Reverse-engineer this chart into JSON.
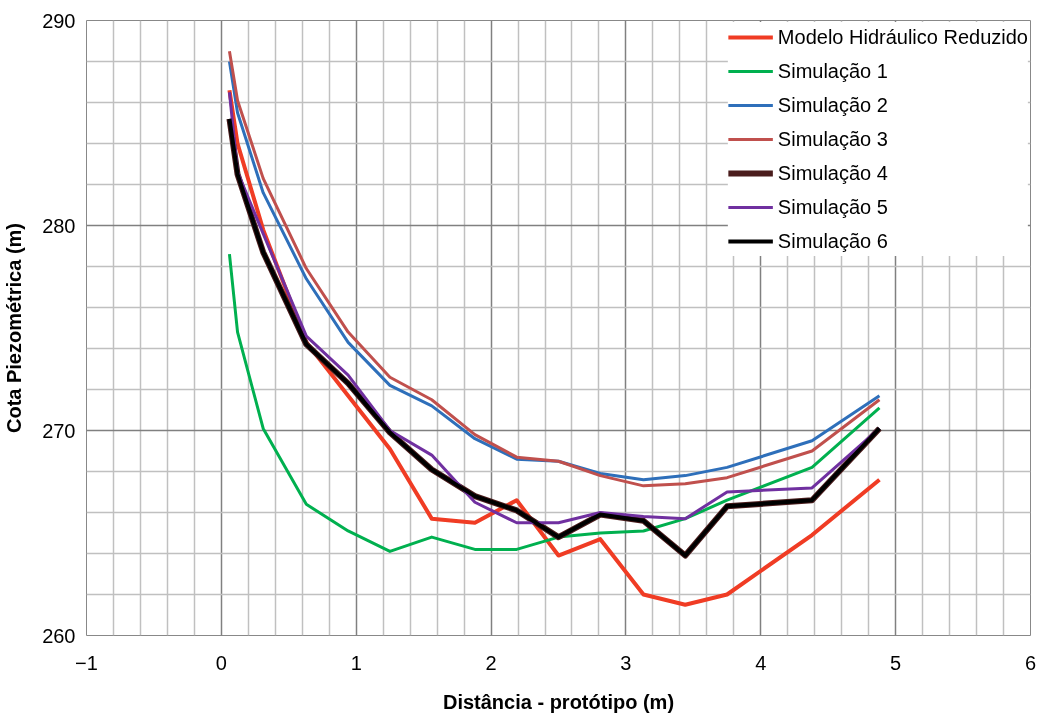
{
  "chart_data": {
    "type": "line",
    "xlabel": "Distância - protótipo (m)",
    "ylabel": "Cota Piezométrica (m)",
    "x": [
      0.06,
      0.12,
      0.31,
      0.63,
      0.94,
      1.25,
      1.56,
      1.88,
      2.19,
      2.5,
      2.81,
      3.13,
      3.44,
      3.75,
      4.38,
      4.88
    ],
    "xlim": [
      -1,
      6
    ],
    "ylim": [
      260,
      290
    ],
    "xticks": [
      -1,
      0,
      1,
      2,
      3,
      4,
      5,
      6
    ],
    "yticks": [
      260,
      270,
      280,
      290
    ],
    "grid": true,
    "legend": "top right",
    "marker": "none",
    "line_style": "solid",
    "series": [
      {
        "name": "Modelo Hidráulico Reduzido",
        "color": "#f03c24",
        "values": [
          286.6,
          284.0,
          279.8,
          274.3,
          271.7,
          269.1,
          265.7,
          265.5,
          266.6,
          263.9,
          264.7,
          262.0,
          261.5,
          262.0,
          264.9,
          267.6
        ]
      },
      {
        "name": "Simulação 1",
        "color": "#00b04f",
        "values": [
          278.6,
          274.8,
          270.1,
          266.4,
          265.1,
          264.1,
          264.8,
          264.2,
          264.2,
          264.8,
          265.0,
          265.1,
          265.7,
          266.6,
          268.2,
          271.1
        ]
      },
      {
        "name": "Simulação 2",
        "color": "#2e6fba",
        "values": [
          288.0,
          285.5,
          281.6,
          277.4,
          274.3,
          272.2,
          271.2,
          269.6,
          268.6,
          268.5,
          267.9,
          267.6,
          267.8,
          268.2,
          269.5,
          271.7
        ]
      },
      {
        "name": "Simulação 3",
        "color": "#c0504d",
        "values": [
          288.5,
          286.1,
          282.3,
          277.9,
          274.8,
          272.6,
          271.5,
          269.8,
          268.7,
          268.5,
          267.8,
          267.3,
          267.4,
          267.7,
          269.0,
          271.5
        ]
      },
      {
        "name": "Simulação 4",
        "color": "#4a1c1c",
        "values": [
          285.2,
          282.5,
          278.7,
          274.2,
          272.3,
          269.9,
          268.1,
          266.8,
          266.1,
          264.8,
          265.9,
          265.6,
          263.9,
          266.3,
          266.6,
          270.1
        ]
      },
      {
        "name": "Simulação 5",
        "color": "#7030a0",
        "values": [
          286.5,
          282.6,
          279.6,
          274.6,
          272.7,
          270.0,
          268.8,
          266.5,
          265.5,
          265.5,
          266.0,
          265.8,
          265.7,
          267.0,
          267.2,
          270.1
        ]
      },
      {
        "name": "Simulação 6",
        "color": "#000000",
        "values": [
          285.2,
          282.5,
          278.7,
          274.2,
          272.3,
          269.9,
          268.1,
          266.8,
          266.1,
          264.8,
          265.9,
          265.6,
          263.9,
          266.3,
          266.6,
          270.1
        ]
      }
    ]
  }
}
